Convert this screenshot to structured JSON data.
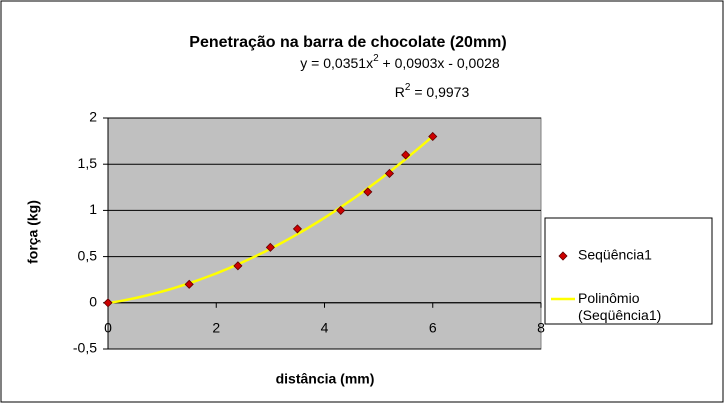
{
  "chart_data": {
    "type": "scatter",
    "title": "Penetração na barra de chocolate (20mm)",
    "equation": [
      "y = 0,0351x",
      "2",
      " + 0,0903x - 0,0028"
    ],
    "r_squared": [
      "R",
      "2",
      " = 0,9973"
    ],
    "x_label": "distância (mm)",
    "y_label": "força (kg)",
    "series": [
      {
        "name": "Seqüência1",
        "color": "#cc0000",
        "x": [
          0,
          1.5,
          2.4,
          3,
          3.5,
          4.3,
          4.8,
          5.2,
          5.5,
          6
        ],
        "values": [
          0,
          0.2,
          0.4,
          0.6,
          0.8,
          1.0,
          1.2,
          1.4,
          1.6,
          1.8
        ]
      }
    ],
    "trendline": {
      "name": "Polinômio (Seqüência1)",
      "color": "#ffff00",
      "coefficients": [
        0.0351,
        0.0903,
        -0.0028
      ],
      "xrange": [
        0,
        6
      ]
    },
    "xlim": [
      0,
      8
    ],
    "xticks": [
      0,
      2,
      4,
      6,
      8
    ],
    "ylim": [
      -0.5,
      2
    ],
    "yticks": [
      {
        "value": -0.5,
        "label": "-0,5"
      },
      0,
      {
        "value": 0.5,
        "label": "0,5"
      },
      1,
      {
        "value": 1.5,
        "label": "1,5"
      },
      2
    ],
    "grid": true,
    "legend": "right"
  }
}
